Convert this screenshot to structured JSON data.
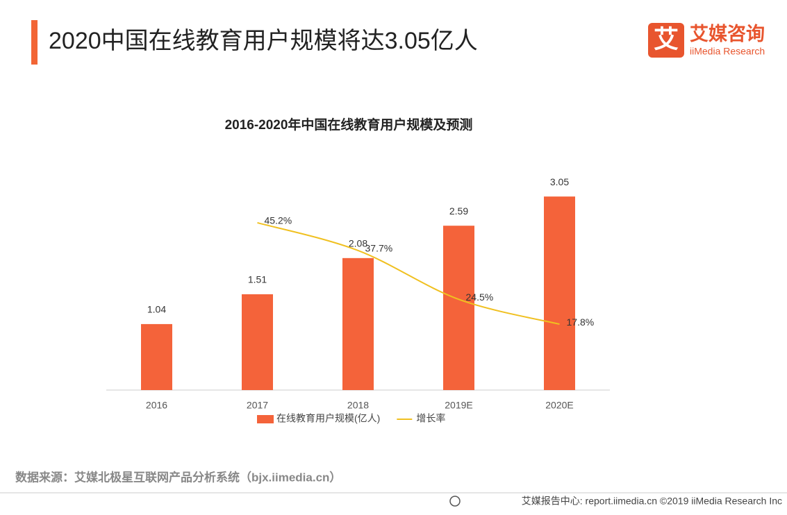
{
  "header": {
    "title": "2020中国在线教育用户规模将达3.05亿人",
    "logo_icon": "艾",
    "logo_name": "艾媒咨询",
    "logo_sub": "iiMedia Research"
  },
  "chart_data": {
    "type": "bar",
    "title": "2016-2020年中国在线教育用户规模及预测",
    "categories": [
      "2016",
      "2017",
      "2018",
      "2019E",
      "2020E"
    ],
    "series": [
      {
        "name": "在线教育用户规模(亿人)",
        "color": "#f4633a",
        "values": [
          1.04,
          1.51,
          2.08,
          2.59,
          3.05
        ]
      },
      {
        "name": "增长率",
        "type": "line",
        "axis": "y2",
        "color": "#f0c020",
        "values": [
          null,
          45.2,
          37.7,
          24.5,
          17.8
        ],
        "value_labels": [
          null,
          "45.2%",
          "37.7%",
          "24.5%",
          "17.8%"
        ]
      }
    ],
    "ylim": [
      0,
      3.5
    ],
    "y2lim": [
      0,
      60
    ],
    "legend": "bottom"
  },
  "source": "数据来源：艾媒北极星互联网产品分析系统（bjx.iimedia.cn）",
  "footer": "艾媒报告中心: report.iimedia.cn  ©2019  iiMedia Research Inc"
}
